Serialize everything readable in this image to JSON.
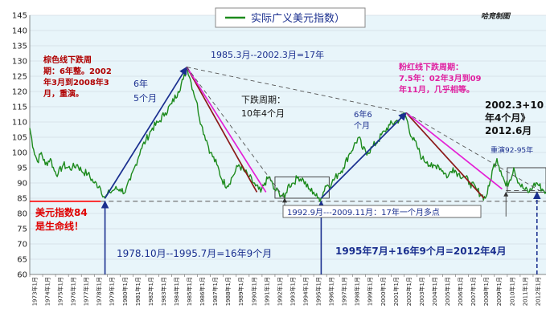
{
  "chart_data": {
    "type": "line",
    "title": "实际广义美元指数）",
    "watermark": "哈竞制图",
    "xlabel": "",
    "ylabel": "",
    "ylim": [
      60,
      145
    ],
    "y_ticks": [
      60,
      65,
      70,
      75,
      80,
      85,
      90,
      95,
      100,
      105,
      110,
      115,
      120,
      125,
      130,
      135,
      140,
      145
    ],
    "x_range": [
      1973,
      2013
    ],
    "x_tick_labels": [
      "1973年1月",
      "1974年1月",
      "1975年1月",
      "1976年1月",
      "1977年1月",
      "1978年1月",
      "1979年1月",
      "1980年1月",
      "1981年1月",
      "1982年1月",
      "1983年1月",
      "1984年1月",
      "1985年1月",
      "1986年1月",
      "1987年1月",
      "1988年1月",
      "1989年1月",
      "1990年1月",
      "1991年1月",
      "1992年1月",
      "1993年1月",
      "1994年1月",
      "1995年1月",
      "1996年1月",
      "1997年1月",
      "1998年1月",
      "1999年1月",
      "2000年1月",
      "2001年1月",
      "2002年1月",
      "2003年1月",
      "2004年1月",
      "2005年1月",
      "2006年1月",
      "2007年1月",
      "2008年1月",
      "2009年1月",
      "2010年1月",
      "2011年1月",
      "2012年1月"
    ],
    "grid": true,
    "colors": {
      "series": "#1c8a1c",
      "background": "#e8f5fa",
      "lifeline": "#ff0000",
      "annotation_blue": "#1a2f8f",
      "trend_maroon": "#8b1a1a",
      "trend_magenta": "#e41fd5",
      "pink_text": "#e020a0",
      "red_text": "#b00000"
    },
    "series": [
      {
        "name": "实际广义美元指数）",
        "points": [
          [
            1973.0,
            108
          ],
          [
            1973.3,
            101
          ],
          [
            1973.6,
            97
          ],
          [
            1973.9,
            100
          ],
          [
            1974.2,
            96
          ],
          [
            1974.6,
            98
          ],
          [
            1974.9,
            94
          ],
          [
            1975.2,
            93
          ],
          [
            1975.6,
            96
          ],
          [
            1975.9,
            95
          ],
          [
            1976.3,
            95
          ],
          [
            1976.7,
            96
          ],
          [
            1977.0,
            94
          ],
          [
            1977.5,
            93
          ],
          [
            1978.0,
            90
          ],
          [
            1978.4,
            89
          ],
          [
            1978.83,
            85
          ],
          [
            1979.2,
            87
          ],
          [
            1979.6,
            88
          ],
          [
            1980.0,
            88
          ],
          [
            1980.4,
            87
          ],
          [
            1980.8,
            91
          ],
          [
            1981.2,
            96
          ],
          [
            1981.6,
            101
          ],
          [
            1982.0,
            104
          ],
          [
            1982.5,
            108
          ],
          [
            1983.0,
            110
          ],
          [
            1983.5,
            113
          ],
          [
            1984.0,
            116
          ],
          [
            1984.5,
            120
          ],
          [
            1984.9,
            124
          ],
          [
            1985.2,
            128
          ],
          [
            1985.5,
            123
          ],
          [
            1985.9,
            117
          ],
          [
            1986.3,
            109
          ],
          [
            1986.7,
            104
          ],
          [
            1987.0,
            100
          ],
          [
            1987.5,
            96
          ],
          [
            1987.9,
            91
          ],
          [
            1988.3,
            89
          ],
          [
            1988.7,
            92
          ],
          [
            1989.2,
            96
          ],
          [
            1989.6,
            94
          ],
          [
            1990.0,
            92
          ],
          [
            1990.5,
            89
          ],
          [
            1990.9,
            87
          ],
          [
            1991.2,
            90
          ],
          [
            1991.6,
            92
          ],
          [
            1991.9,
            88
          ],
          [
            1992.3,
            87
          ],
          [
            1992.75,
            85
          ],
          [
            1993.0,
            89
          ],
          [
            1993.4,
            90
          ],
          [
            1993.8,
            92
          ],
          [
            1994.2,
            91
          ],
          [
            1994.6,
            88
          ],
          [
            1995.0,
            87
          ],
          [
            1995.3,
            85
          ],
          [
            1995.58,
            85
          ],
          [
            1995.9,
            89
          ],
          [
            1996.4,
            90
          ],
          [
            1996.9,
            93
          ],
          [
            1997.3,
            95
          ],
          [
            1997.7,
            99
          ],
          [
            1998.1,
            102
          ],
          [
            1998.5,
            105
          ],
          [
            1998.8,
            101
          ],
          [
            1999.2,
            100
          ],
          [
            1999.6,
            102
          ],
          [
            2000.0,
            104
          ],
          [
            2000.5,
            107
          ],
          [
            2000.9,
            109
          ],
          [
            2001.3,
            110
          ],
          [
            2001.7,
            111
          ],
          [
            2002.0,
            113
          ],
          [
            2002.2,
            111
          ],
          [
            2002.6,
            105
          ],
          [
            2003.0,
            102
          ],
          [
            2003.4,
            98
          ],
          [
            2003.8,
            97
          ],
          [
            2004.2,
            95
          ],
          [
            2004.6,
            96
          ],
          [
            2005.0,
            94
          ],
          [
            2005.4,
            92
          ],
          [
            2005.8,
            95
          ],
          [
            2006.2,
            93
          ],
          [
            2006.7,
            92
          ],
          [
            2007.1,
            90
          ],
          [
            2007.6,
            88
          ],
          [
            2008.0,
            86
          ],
          [
            2008.3,
            85
          ],
          [
            2008.6,
            89
          ],
          [
            2008.9,
            95
          ],
          [
            2009.2,
            98
          ],
          [
            2009.5,
            94
          ],
          [
            2009.9,
            89
          ],
          [
            2010.2,
            91
          ],
          [
            2010.5,
            95
          ],
          [
            2010.9,
            90
          ],
          [
            2011.3,
            88
          ],
          [
            2011.7,
            87
          ],
          [
            2012.0,
            89
          ],
          [
            2012.3,
            90
          ],
          [
            2012.7,
            88
          ],
          [
            2013.0,
            87
          ]
        ]
      }
    ],
    "reference_lines": [
      {
        "type": "horizontal",
        "y": 84,
        "x_range": [
          1973,
          1978.5
        ],
        "style": "solid",
        "color": "#ff0000"
      },
      {
        "type": "horizontal",
        "y": 84,
        "x_range": [
          1978.5,
          2013
        ],
        "style": "dashed",
        "color": "#666666"
      },
      {
        "type": "horizontal",
        "y": 87.5,
        "x_range": [
          2009.9,
          2013
        ],
        "style": "dashed",
        "color": "#555555"
      }
    ],
    "trend_lines": [
      {
        "from": [
          1978.83,
          85
        ],
        "to": [
          1985.17,
          128
        ],
        "color": "#1a2f8f",
        "style": "solid"
      },
      {
        "from": [
          1985.17,
          128
        ],
        "to": [
          1990.6,
          87
        ],
        "color": "#8b1a1a",
        "style": "solid"
      },
      {
        "from": [
          1985.17,
          128
        ],
        "to": [
          1991.3,
          87
        ],
        "color": "#e41fd5",
        "style": "solid"
      },
      {
        "from": [
          1985.17,
          128
        ],
        "to": [
          1992.75,
          85
        ],
        "color": "#555555",
        "style": "dashed"
      },
      {
        "from": [
          1985.17,
          128
        ],
        "to": [
          2002.17,
          113
        ],
        "color": "#555555",
        "style": "dashed"
      },
      {
        "from": [
          1995.58,
          85
        ],
        "to": [
          2002.17,
          113
        ],
        "color": "#1a2f8f",
        "style": "solid"
      },
      {
        "from": [
          2002.17,
          113
        ],
        "to": [
          2008.2,
          85
        ],
        "color": "#8b1a1a",
        "style": "solid"
      },
      {
        "from": [
          2002.17,
          113
        ],
        "to": [
          2009.6,
          88
        ],
        "color": "#e41fd5",
        "style": "solid"
      },
      {
        "from": [
          2002.17,
          113
        ],
        "to": [
          2012.5,
          87.5
        ],
        "color": "#555555",
        "style": "dashed"
      }
    ],
    "vertical_markers": [
      {
        "x": 1978.83,
        "from_y": 60,
        "to_y": 84,
        "color": "#1a2f8f",
        "style": "solid"
      },
      {
        "x": 1995.58,
        "from_y": 60,
        "to_y": 84,
        "color": "#1a2f8f",
        "style": "solid"
      },
      {
        "x": 2012.3,
        "from_y": 60,
        "to_y": 87,
        "color": "#1a2f8f",
        "style": "dashed"
      },
      {
        "x": 1992.75,
        "from_y": 79,
        "to_y": 85,
        "color": "#555555",
        "style": "solid"
      },
      {
        "x": 2009.9,
        "from_y": 79,
        "to_y": 87,
        "color": "#555555",
        "style": "solid"
      }
    ],
    "highlight_boxes": [
      {
        "x_range": [
          1992.0,
          1996.2
        ],
        "y_range": [
          85,
          92
        ]
      },
      {
        "x_range": [
          2010.0,
          2013.0
        ],
        "y_range": [
          87,
          95
        ]
      }
    ],
    "annotations": {
      "red_left": [
        "棕色线下跌周",
        "期：6年整。2002",
        "年3月到2008年3",
        "月，重演。"
      ],
      "blue_rise_label": [
        "6年",
        "5个月"
      ],
      "span_1985_2002": "1985.3月--2002.3月=17年",
      "fall_period": [
        "下跌周期：",
        "10年4个月"
      ],
      "rise_6y6m": [
        "6年6",
        "个月"
      ],
      "pink_right": [
        "粉红线下跌周期：",
        "7.5年：02年3月到09",
        "年11月，几乎相等。"
      ],
      "black_right": [
        "2002.3+10",
        "年4个月》",
        "2012.6月"
      ],
      "repeat_label": "重演92-95年",
      "lifeline_label": [
        "美元指数84",
        "是生命线！"
      ],
      "span_1992_2009": "1992.9月---2009.11月：17年一个月多点",
      "span_1978_1995": "1978.10月--1995.7月=16年9个月",
      "sum_1995_2012": "1995年7月+16年9个月=2012年4月"
    }
  }
}
